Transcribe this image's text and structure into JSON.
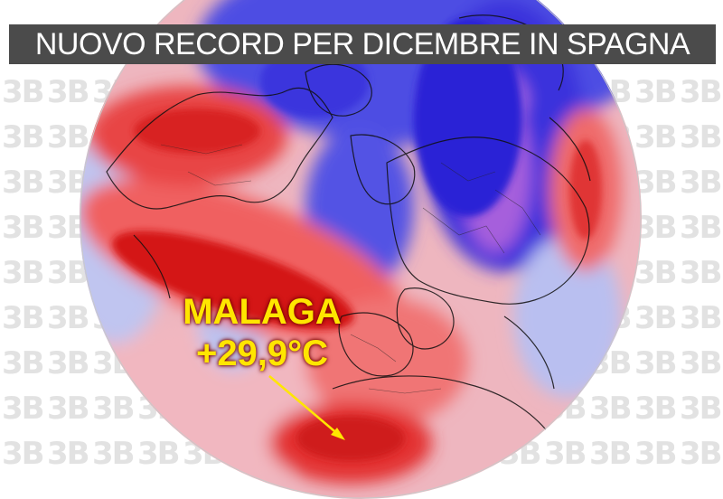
{
  "headline": "NUOVO RECORD PER DICEMBRE IN SPAGNA",
  "callout": {
    "city": "MALAGA",
    "temperature": "+29,9°C"
  },
  "watermark": {
    "text": "3B"
  },
  "map": {
    "type": "polar-stereographic temperature anomaly",
    "projection": "north-polar",
    "anomaly_colors": {
      "strong_warm": "#d81818",
      "warm": "#f06a6a",
      "mild_warm": "#f7b4b4",
      "neutral": "#f3eef3",
      "mild_cold": "#b5bdf2",
      "cold": "#5a5ae8",
      "strong_cold": "#2c22d8",
      "extreme_cold": "#b46ae0"
    }
  },
  "colors": {
    "banner_background": "#4b4b4b",
    "banner_text": "#ffffff",
    "callout_text": "#ffe600",
    "arrow": "#ffe600"
  }
}
